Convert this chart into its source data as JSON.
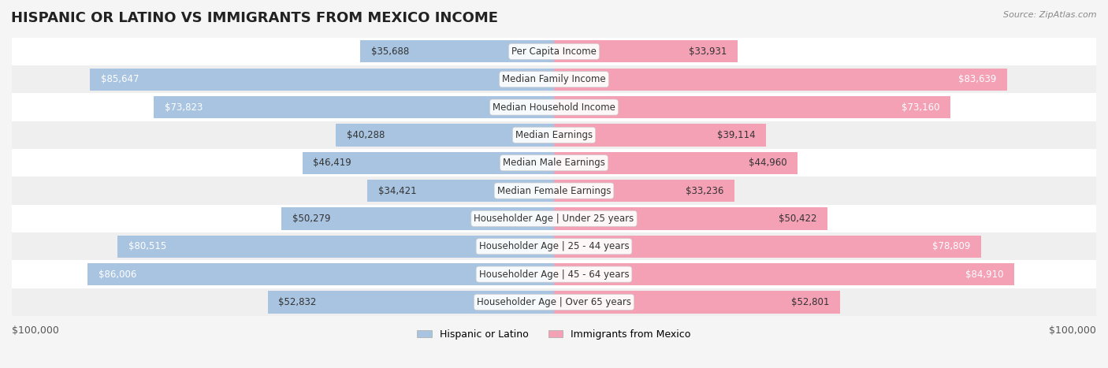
{
  "title": "HISPANIC OR LATINO VS IMMIGRANTS FROM MEXICO INCOME",
  "source": "Source: ZipAtlas.com",
  "categories": [
    "Per Capita Income",
    "Median Family Income",
    "Median Household Income",
    "Median Earnings",
    "Median Male Earnings",
    "Median Female Earnings",
    "Householder Age | Under 25 years",
    "Householder Age | 25 - 44 years",
    "Householder Age | 45 - 64 years",
    "Householder Age | Over 65 years"
  ],
  "hispanic_values": [
    35688,
    85647,
    73823,
    40288,
    46419,
    34421,
    50279,
    80515,
    86006,
    52832
  ],
  "mexico_values": [
    33931,
    83639,
    73160,
    39114,
    44960,
    33236,
    50422,
    78809,
    84910,
    52801
  ],
  "hispanic_color": "#a8c4e0",
  "mexico_color": "#f4a0b5",
  "hispanic_dark_color": "#6baed6",
  "mexico_dark_color": "#f768a1",
  "max_value": 100000,
  "background_color": "#f5f5f5",
  "row_bg_light": "#ffffff",
  "row_bg_dark": "#efefef",
  "label_color_hispanic_high": "#ffffff",
  "label_color_low": "#555555",
  "legend_hispanic": "Hispanic or Latino",
  "legend_mexico": "Immigrants from Mexico",
  "title_fontsize": 13,
  "label_fontsize": 8.5,
  "category_fontsize": 8.5
}
